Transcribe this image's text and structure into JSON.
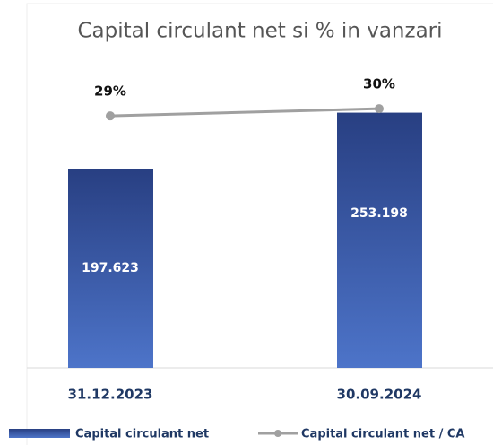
{
  "chart_data": {
    "type": "bar_line",
    "title": "Capital circulant net si % in vanzari",
    "categories": [
      "31.12.2023",
      "30.09.2024"
    ],
    "ylim": [
      0,
      300
    ],
    "y2lim": [
      -6,
      36
    ],
    "series": [
      {
        "name": "Capital circulant net",
        "type": "bar",
        "color": "#2f4b9a",
        "values": [
          197.623,
          253.198
        ]
      },
      {
        "name": "Capital circulant net / CA",
        "type": "line",
        "axis": "y2",
        "color": "#a0a0a0",
        "values": [
          29,
          30
        ],
        "value_labels": [
          "29%",
          "30%"
        ]
      }
    ]
  }
}
